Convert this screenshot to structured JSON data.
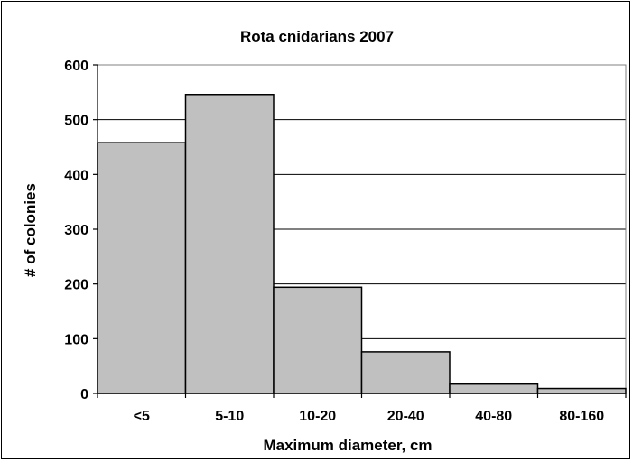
{
  "chart_data": {
    "type": "bar",
    "title": "Rota cnidarians 2007",
    "xlabel": "Maximum diameter, cm",
    "ylabel": "# of colonies",
    "categories": [
      "<5",
      "5-10",
      "10-20",
      "20-40",
      "40-80",
      "80-160"
    ],
    "values": [
      458,
      546,
      194,
      76,
      17,
      9
    ],
    "ylim": [
      0,
      600
    ],
    "yticks": [
      "0",
      "100",
      "200",
      "300",
      "400",
      "500",
      "600"
    ],
    "grid": true,
    "legend": "none",
    "colors": {
      "bar_fill": "#c0c0c0",
      "bar_stroke": "#000000",
      "plot_background": "#ffffff",
      "gridline": "#000000"
    }
  }
}
